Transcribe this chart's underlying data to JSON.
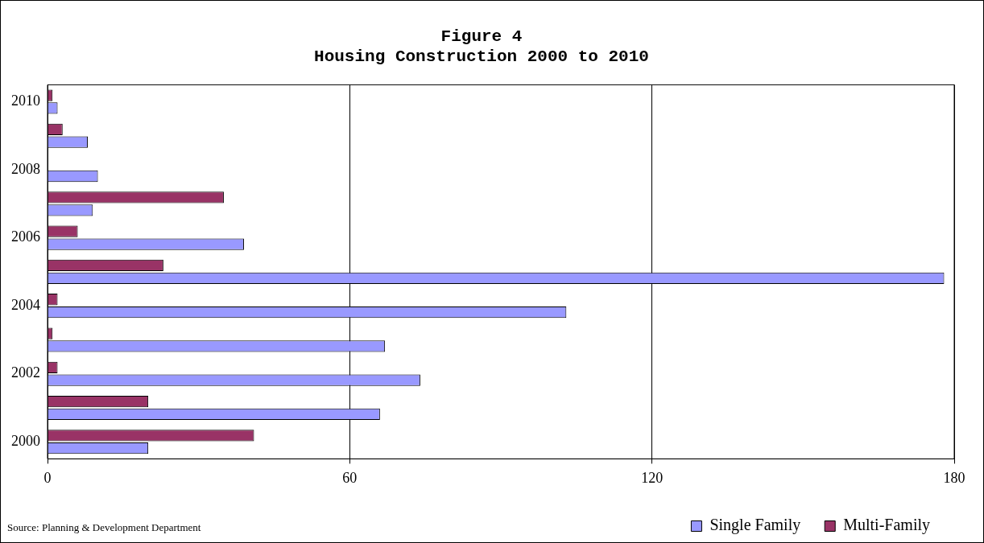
{
  "chart_data": {
    "type": "bar",
    "orientation": "horizontal",
    "title": [
      "Figure 4",
      "Housing Construction 2000 to 2010"
    ],
    "categories": [
      "2010",
      null,
      "2008",
      null,
      "2006",
      null,
      "2004",
      null,
      "2002",
      null,
      "2000"
    ],
    "series": [
      {
        "name": "Single Family",
        "color": "#9999ff",
        "values": [
          2,
          8,
          10,
          9,
          39,
          178,
          103,
          67,
          74,
          66,
          20
        ]
      },
      {
        "name": "Multi-Family",
        "color": "#993366",
        "values": [
          1,
          3,
          0,
          35,
          6,
          23,
          2,
          1,
          2,
          20,
          41
        ]
      }
    ],
    "xlim": [
      0,
      180
    ],
    "xticks": [
      0,
      60,
      120,
      180
    ],
    "grid": "x",
    "legend": "bottom right",
    "annotations": [
      "Source: Planning & Development Department"
    ]
  }
}
